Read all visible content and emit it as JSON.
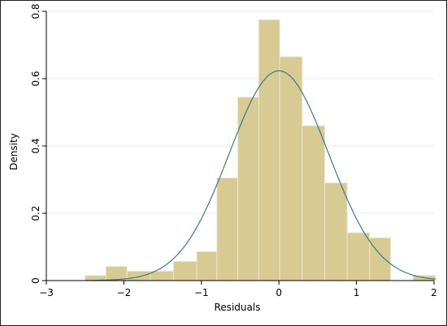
{
  "chart_data": {
    "type": "bar",
    "title": "",
    "xlabel": "Residuals",
    "ylabel": "Density",
    "xlim": [
      -3,
      2
    ],
    "ylim": [
      0,
      0.8
    ],
    "x_ticks": [
      -3,
      -2,
      -1,
      0,
      1,
      2
    ],
    "y_ticks": [
      0,
      0.2,
      0.4,
      0.6,
      0.8
    ],
    "x_tick_labels": [
      "−3",
      "−2",
      "−1",
      "0",
      "1",
      "2"
    ],
    "y_tick_labels": [
      "0",
      "0.2",
      "0.4",
      "0.6",
      "0.8"
    ],
    "grid": true,
    "bins": [
      {
        "x0": -2.5,
        "x1": -2.23,
        "value": 0.015
      },
      {
        "x0": -2.23,
        "x1": -1.96,
        "value": 0.042
      },
      {
        "x0": -1.96,
        "x1": -1.66,
        "value": 0.028
      },
      {
        "x0": -1.66,
        "x1": -1.36,
        "value": 0.028
      },
      {
        "x0": -1.36,
        "x1": -1.06,
        "value": 0.057
      },
      {
        "x0": -1.06,
        "x1": -0.8,
        "value": 0.086
      },
      {
        "x0": -0.8,
        "x1": -0.53,
        "value": 0.305
      },
      {
        "x0": -0.53,
        "x1": -0.26,
        "value": 0.545
      },
      {
        "x0": -0.26,
        "x1": 0.01,
        "value": 0.775
      },
      {
        "x0": 0.01,
        "x1": 0.3,
        "value": 0.665
      },
      {
        "x0": 0.3,
        "x1": 0.59,
        "value": 0.46
      },
      {
        "x0": 0.59,
        "x1": 0.88,
        "value": 0.29
      },
      {
        "x0": 0.88,
        "x1": 1.17,
        "value": 0.142
      },
      {
        "x0": 1.17,
        "x1": 1.44,
        "value": 0.127
      },
      {
        "x0": 1.44,
        "x1": 1.73,
        "value": 0
      },
      {
        "x0": 1.73,
        "x1": 2.02,
        "value": 0.015
      }
    ],
    "normal_curve": {
      "mean": 0,
      "sd": 0.64
    },
    "colors": {
      "bar_fill": "#d7ca93",
      "bar_edge": "#ece7cd",
      "curve": "#3e7b80",
      "grid": "#e8eded",
      "axis": "#000000"
    }
  }
}
